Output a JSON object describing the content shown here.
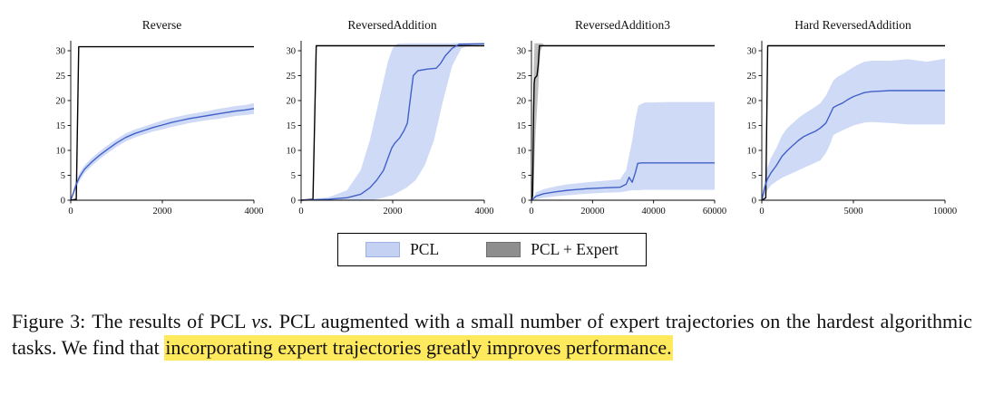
{
  "figure": {
    "legend": {
      "items": [
        {
          "label": "PCL",
          "swatch_color": "#c5d1f2",
          "swatch_border": "#9fb2e6"
        },
        {
          "label": "PCL + Expert",
          "swatch_color": "#8e8e8e",
          "swatch_border": "#6f6f6f"
        }
      ]
    },
    "caption": {
      "label": "Figure 3:",
      "text_before_italic": "The results of PCL ",
      "italic": "vs.",
      "text_after_italic": " PCL augmented with a small number of expert trajectories on the hardest algorithmic tasks. We find that ",
      "highlighted": "incorporating expert trajectories greatly improves performance.",
      "highlight_color": "#ffe95c"
    }
  },
  "chart_data": [
    {
      "type": "line",
      "title": "Reverse",
      "xlabel": "",
      "ylabel": "",
      "xlim": [
        0,
        4000
      ],
      "ylim": [
        0,
        32
      ],
      "xticks": [
        0,
        2000,
        4000
      ],
      "yticks": [
        0,
        5,
        10,
        15,
        20,
        25,
        30
      ],
      "series": [
        {
          "name": "PCL + Expert",
          "color": "#000000",
          "points": [
            [
              0,
              0
            ],
            [
              120,
              0.2
            ],
            [
              175,
              30.8
            ],
            [
              4000,
              30.8
            ]
          ]
        },
        {
          "name": "PCL",
          "color": "#4161c9",
          "band_color": "#a8bbef",
          "points": [
            [
              0,
              0
            ],
            [
              60,
              1.5
            ],
            [
              120,
              3.2
            ],
            [
              200,
              4.8
            ],
            [
              300,
              6.2
            ],
            [
              450,
              7.6
            ],
            [
              600,
              8.8
            ],
            [
              800,
              10.2
            ],
            [
              1000,
              11.5
            ],
            [
              1200,
              12.6
            ],
            [
              1400,
              13.4
            ],
            [
              1600,
              14.0
            ],
            [
              1800,
              14.6
            ],
            [
              2000,
              15.1
            ],
            [
              2200,
              15.6
            ],
            [
              2400,
              16.0
            ],
            [
              2600,
              16.4
            ],
            [
              2800,
              16.7
            ],
            [
              3000,
              17.0
            ],
            [
              3200,
              17.3
            ],
            [
              3400,
              17.6
            ],
            [
              3600,
              17.9
            ],
            [
              3800,
              18.1
            ],
            [
              4000,
              18.4
            ]
          ],
          "band": [
            [
              0,
              0,
              0
            ],
            [
              60,
              1,
              2.2
            ],
            [
              120,
              2.5,
              4
            ],
            [
              200,
              4,
              5.6
            ],
            [
              300,
              5.4,
              7
            ],
            [
              450,
              6.8,
              8.4
            ],
            [
              600,
              8,
              9.6
            ],
            [
              800,
              9.4,
              11
            ],
            [
              1000,
              10.7,
              12.3
            ],
            [
              1200,
              11.8,
              13.4
            ],
            [
              1400,
              12.6,
              14.2
            ],
            [
              1600,
              13.2,
              14.8
            ],
            [
              1800,
              13.8,
              15.4
            ],
            [
              2000,
              14.2,
              16
            ],
            [
              2200,
              14.7,
              16.5
            ],
            [
              2400,
              15.1,
              16.9
            ],
            [
              2600,
              15.5,
              17.3
            ],
            [
              2800,
              15.8,
              17.6
            ],
            [
              3000,
              16.1,
              17.9
            ],
            [
              3200,
              16.3,
              18.3
            ],
            [
              3400,
              16.6,
              18.6
            ],
            [
              3600,
              16.9,
              18.9
            ],
            [
              3800,
              17.1,
              19.1
            ],
            [
              4000,
              17.3,
              19.5
            ]
          ]
        }
      ]
    },
    {
      "type": "line",
      "title": "ReversedAddition",
      "xlabel": "",
      "ylabel": "",
      "xlim": [
        0,
        4000
      ],
      "ylim": [
        0,
        32
      ],
      "xticks": [
        0,
        2000,
        4000
      ],
      "yticks": [
        0,
        5,
        10,
        15,
        20,
        25,
        30
      ],
      "series": [
        {
          "name": "PCL + Expert",
          "color": "#000000",
          "points": [
            [
              0,
              0
            ],
            [
              260,
              0.2
            ],
            [
              330,
              31
            ],
            [
              4000,
              31
            ]
          ]
        },
        {
          "name": "PCL",
          "color": "#4161c9",
          "band_color": "#a8bbef",
          "points": [
            [
              0,
              0
            ],
            [
              600,
              0.2
            ],
            [
              1000,
              0.5
            ],
            [
              1300,
              1.2
            ],
            [
              1500,
              2.5
            ],
            [
              1650,
              4
            ],
            [
              1800,
              6
            ],
            [
              1900,
              8.5
            ],
            [
              1980,
              10.5
            ],
            [
              2050,
              11.5
            ],
            [
              2150,
              12.5
            ],
            [
              2250,
              14
            ],
            [
              2320,
              15.5
            ],
            [
              2380,
              20
            ],
            [
              2450,
              25
            ],
            [
              2550,
              26
            ],
            [
              2750,
              26.3
            ],
            [
              2950,
              26.5
            ],
            [
              3050,
              27.5
            ],
            [
              3150,
              29
            ],
            [
              3300,
              30.5
            ],
            [
              3450,
              31.3
            ],
            [
              4000,
              31.4
            ]
          ],
          "band": [
            [
              0,
              0,
              0
            ],
            [
              600,
              0,
              0.6
            ],
            [
              1000,
              0,
              2
            ],
            [
              1300,
              0,
              6
            ],
            [
              1500,
              0,
              12
            ],
            [
              1650,
              0.2,
              18
            ],
            [
              1800,
              0.5,
              24
            ],
            [
              1900,
              0.8,
              28
            ],
            [
              2000,
              1,
              30.5
            ],
            [
              2100,
              1.5,
              31.4
            ],
            [
              2300,
              2.5,
              31.5
            ],
            [
              2500,
              4,
              31.5
            ],
            [
              2700,
              7,
              31.5
            ],
            [
              2900,
              12,
              31.5
            ],
            [
              3100,
              20,
              31.5
            ],
            [
              3300,
              27,
              31.5
            ],
            [
              3500,
              30.5,
              31.6
            ],
            [
              3700,
              31.2,
              31.6
            ],
            [
              4000,
              31.2,
              31.6
            ]
          ]
        }
      ]
    },
    {
      "type": "line",
      "title": "ReversedAddition3",
      "xlabel": "",
      "ylabel": "",
      "xlim": [
        0,
        60000
      ],
      "ylim": [
        0,
        32
      ],
      "xticks": [
        0,
        20000,
        40000,
        60000
      ],
      "yticks": [
        0,
        5,
        10,
        15,
        20,
        25,
        30
      ],
      "series": [
        {
          "name": "PCL + Expert",
          "color": "#000000",
          "band_color": "#8a8a8a",
          "points": [
            [
              0,
              0
            ],
            [
              400,
              1
            ],
            [
              700,
              18
            ],
            [
              900,
              23.5
            ],
            [
              1100,
              24.5
            ],
            [
              1800,
              25
            ],
            [
              2200,
              27
            ],
            [
              2600,
              31
            ],
            [
              60000,
              31
            ]
          ],
          "band": [
            [
              0,
              0,
              0
            ],
            [
              400,
              0,
              8
            ],
            [
              700,
              2,
              26
            ],
            [
              1000,
              8,
              31.5
            ],
            [
              1400,
              14,
              31.5
            ],
            [
              1800,
              18,
              31.5
            ],
            [
              2200,
              22,
              31.5
            ],
            [
              2600,
              27,
              31.5
            ],
            [
              3000,
              30,
              31.5
            ],
            [
              3600,
              31,
              31.5
            ],
            [
              4200,
              31,
              31
            ]
          ]
        },
        {
          "name": "PCL",
          "color": "#4161c9",
          "band_color": "#a8bbef",
          "points": [
            [
              0,
              0
            ],
            [
              1500,
              0.8
            ],
            [
              4000,
              1.3
            ],
            [
              8000,
              1.7
            ],
            [
              12000,
              2
            ],
            [
              18000,
              2.3
            ],
            [
              24000,
              2.5
            ],
            [
              29000,
              2.6
            ],
            [
              31000,
              3.2
            ],
            [
              32000,
              4.6
            ],
            [
              33000,
              3.6
            ],
            [
              34000,
              5.5
            ],
            [
              34800,
              7.4
            ],
            [
              36000,
              7.5
            ],
            [
              60000,
              7.5
            ]
          ],
          "band": [
            [
              0,
              0,
              0
            ],
            [
              1500,
              0.2,
              1.6
            ],
            [
              4000,
              0.5,
              2.2
            ],
            [
              8000,
              0.8,
              2.8
            ],
            [
              12000,
              1,
              3.2
            ],
            [
              18000,
              1.3,
              3.6
            ],
            [
              24000,
              1.5,
              3.9
            ],
            [
              29000,
              1.6,
              4.2
            ],
            [
              31000,
              1.8,
              6
            ],
            [
              32000,
              1.9,
              9
            ],
            [
              33000,
              2,
              12
            ],
            [
              34000,
              2,
              16
            ],
            [
              35000,
              2,
              19
            ],
            [
              37000,
              2.1,
              19.6
            ],
            [
              45000,
              2.1,
              19.7
            ],
            [
              60000,
              2.1,
              19.7
            ]
          ]
        }
      ]
    },
    {
      "type": "line",
      "title": "Hard ReversedAddition",
      "xlabel": "",
      "ylabel": "",
      "xlim": [
        0,
        10000
      ],
      "ylim": [
        0,
        32
      ],
      "xticks": [
        0,
        5000,
        10000
      ],
      "yticks": [
        0,
        5,
        10,
        15,
        20,
        25,
        30
      ],
      "series": [
        {
          "name": "PCL + Expert",
          "color": "#000000",
          "points": [
            [
              0,
              0
            ],
            [
              220,
              0.5
            ],
            [
              320,
              31
            ],
            [
              10000,
              31
            ]
          ]
        },
        {
          "name": "PCL",
          "color": "#4161c9",
          "band_color": "#a8bbef",
          "points": [
            [
              0,
              0
            ],
            [
              150,
              2.5
            ],
            [
              300,
              4.2
            ],
            [
              500,
              5.5
            ],
            [
              800,
              7
            ],
            [
              1100,
              8.8
            ],
            [
              1400,
              10
            ],
            [
              1700,
              11
            ],
            [
              2000,
              12
            ],
            [
              2300,
              12.8
            ],
            [
              2600,
              13.3
            ],
            [
              2900,
              13.8
            ],
            [
              3200,
              14.5
            ],
            [
              3500,
              15.5
            ],
            [
              3700,
              17
            ],
            [
              3900,
              18.6
            ],
            [
              4100,
              19
            ],
            [
              4400,
              19.5
            ],
            [
              4700,
              20.2
            ],
            [
              5000,
              20.8
            ],
            [
              5300,
              21.2
            ],
            [
              5600,
              21.6
            ],
            [
              6000,
              21.8
            ],
            [
              6500,
              21.9
            ],
            [
              7000,
              22
            ],
            [
              8000,
              22
            ],
            [
              9000,
              22
            ],
            [
              10000,
              22
            ]
          ],
          "band": [
            [
              0,
              0,
              0
            ],
            [
              150,
              1,
              4
            ],
            [
              300,
              2,
              6.5
            ],
            [
              500,
              3,
              8.5
            ],
            [
              800,
              3.8,
              10.5
            ],
            [
              1100,
              4.5,
              13
            ],
            [
              1400,
              5,
              14.5
            ],
            [
              1700,
              5.5,
              15.5
            ],
            [
              2000,
              6,
              16.5
            ],
            [
              2300,
              6.5,
              17.3
            ],
            [
              2600,
              7,
              18
            ],
            [
              2900,
              7.5,
              18.7
            ],
            [
              3200,
              8,
              19.5
            ],
            [
              3500,
              9.5,
              21
            ],
            [
              3700,
              11,
              22.5
            ],
            [
              3900,
              13,
              24
            ],
            [
              4100,
              13.5,
              24.7
            ],
            [
              4400,
              14,
              25.3
            ],
            [
              4700,
              14.5,
              26
            ],
            [
              5000,
              15,
              26.7
            ],
            [
              5300,
              15.3,
              27.3
            ],
            [
              5600,
              15.6,
              27.8
            ],
            [
              6000,
              15.7,
              28
            ],
            [
              6500,
              15.6,
              28
            ],
            [
              7000,
              15.5,
              28
            ],
            [
              8000,
              15.2,
              28.3
            ],
            [
              9000,
              15.2,
              27.8
            ],
            [
              10000,
              15.2,
              28.4
            ]
          ]
        }
      ]
    }
  ]
}
